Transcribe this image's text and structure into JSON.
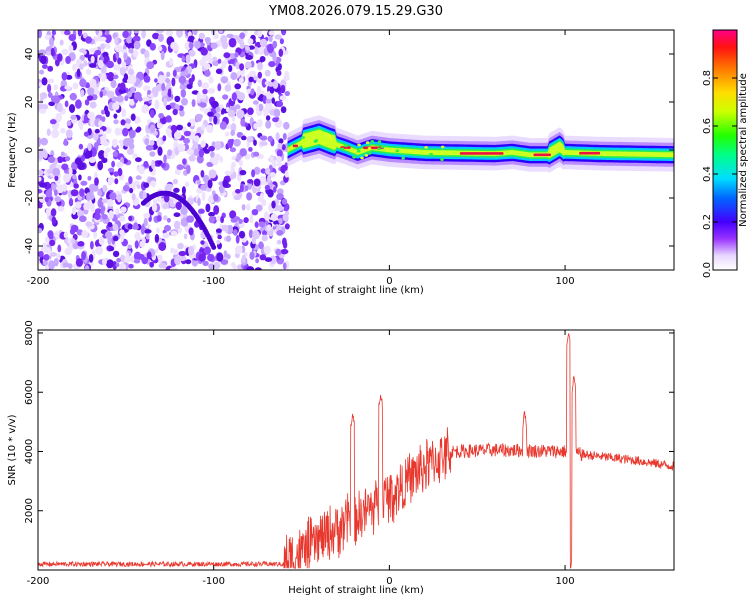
{
  "title": "YM08.2026.079.15.29.G30",
  "chart_data": [
    {
      "type": "heatmap",
      "name": "spectrogram",
      "xlabel": "Height of straight line (km)",
      "ylabel": "Frequency (Hz)",
      "xlim": [
        -200,
        162
      ],
      "ylim": [
        -50,
        50
      ],
      "xticks": [
        -200,
        -100,
        0,
        100
      ],
      "yticks": [
        -40,
        -20,
        0,
        20,
        40
      ],
      "noise_region_x": [
        -200,
        -58
      ],
      "colorbar": {
        "label": "Normalized spectral amplitude",
        "range": [
          0,
          1
        ],
        "ticks": [
          "0.0",
          "0.2",
          "0.4",
          "0.6",
          "0.8"
        ],
        "colors": [
          "#ffffff",
          "#cc99ff",
          "#7700ee",
          "#0000ff",
          "#00ccff",
          "#00ff44",
          "#aaff00",
          "#ffee00",
          "#ff8800",
          "#ff0000",
          "#ff0088"
        ]
      },
      "signal_track": [
        {
          "x": -58,
          "f": 0
        },
        {
          "x": -50,
          "f": 3
        },
        {
          "x": -40,
          "f": 5
        },
        {
          "x": -33,
          "f": 3
        },
        {
          "x": -25,
          "f": 1
        },
        {
          "x": -18,
          "f": -1
        },
        {
          "x": -10,
          "f": 1
        },
        {
          "x": 0,
          "f": 0
        },
        {
          "x": 20,
          "f": -1
        },
        {
          "x": 60,
          "f": -1.5
        },
        {
          "x": 70,
          "f": -1
        },
        {
          "x": 80,
          "f": -2
        },
        {
          "x": 90,
          "f": -2
        },
        {
          "x": 97,
          "f": 1
        },
        {
          "x": 100,
          "f": -1
        },
        {
          "x": 120,
          "f": -1.5
        },
        {
          "x": 162,
          "f": -2
        }
      ]
    },
    {
      "type": "line",
      "name": "snr",
      "xlabel": "Height of straight line (km)",
      "ylabel": "SNR (10 * v/v)",
      "xlim": [
        -200,
        162
      ],
      "ylim": [
        0,
        8100
      ],
      "xticks": [
        -200,
        -100,
        0,
        100
      ],
      "yticks": [
        2000,
        4000,
        6000,
        8000
      ],
      "color": "#e8382e",
      "baseline": [
        {
          "x": -200,
          "y": 200
        },
        {
          "x": -60,
          "y": 200
        },
        {
          "x": -45,
          "y": 800
        },
        {
          "x": -30,
          "y": 1400
        },
        {
          "x": -10,
          "y": 2100
        },
        {
          "x": 5,
          "y": 2700
        },
        {
          "x": 20,
          "y": 3500
        },
        {
          "x": 35,
          "y": 4000
        },
        {
          "x": 60,
          "y": 4050
        },
        {
          "x": 100,
          "y": 4000
        },
        {
          "x": 110,
          "y": 3900
        },
        {
          "x": 140,
          "y": 3700
        },
        {
          "x": 162,
          "y": 3500
        }
      ],
      "spikes": [
        {
          "x": -21,
          "y": 5300
        },
        {
          "x": -5,
          "y": 6000
        },
        {
          "x": 77,
          "y": 5300
        },
        {
          "x": 102,
          "y": 8000
        },
        {
          "x": 104,
          "y": 500
        },
        {
          "x": 105,
          "y": 6500
        }
      ]
    }
  ]
}
